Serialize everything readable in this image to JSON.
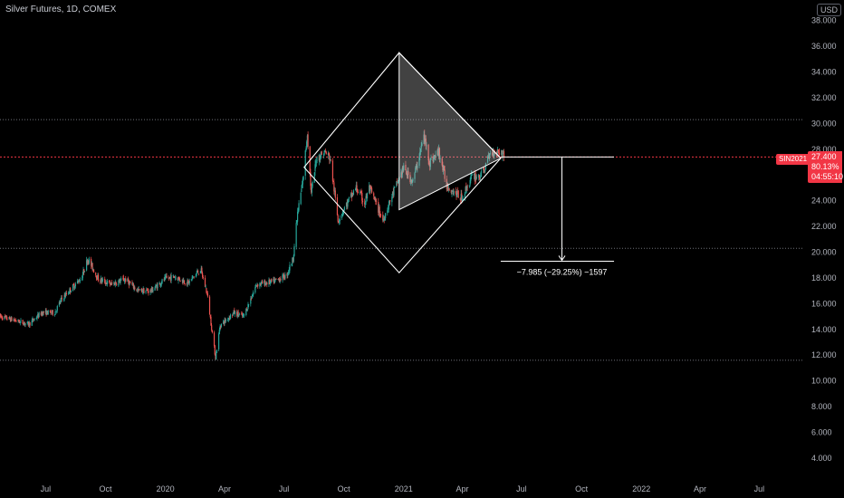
{
  "header": {
    "title": "Silver Futures, 1D, COMEX",
    "currency_badge": "USD"
  },
  "price_label": {
    "symbol": "SIN2021",
    "last_price": "27.400",
    "change_pct": "80.13%",
    "countdown": "04:55:10",
    "color": "#f23645"
  },
  "annotation": {
    "measure_text": "−7.985 (−29.25%) −1597"
  },
  "colors": {
    "up": "#26a69a",
    "down": "#ef5350",
    "background": "#000000",
    "drawing": "#ffffff",
    "price_line": "#f23645"
  },
  "chart_data": {
    "type": "candlestick",
    "y_axis": {
      "ticks": [
        "4.000",
        "6.000",
        "8.000",
        "10.000",
        "12.000",
        "14.000",
        "16.000",
        "18.000",
        "20.000",
        "22.000",
        "24.000",
        "26.000",
        "28.000",
        "30.000",
        "32.000",
        "34.000",
        "36.000",
        "38.000"
      ],
      "range": [
        2.3,
        39.6
      ],
      "side": "right"
    },
    "x_axis": {
      "ticks": [
        "Jul",
        "Oct",
        "2020",
        "Apr",
        "Jul",
        "Oct",
        "2021",
        "Apr",
        "Jul",
        "Oct",
        "2022",
        "Apr",
        "Jul"
      ],
      "range": [
        "2019-04-22",
        "2022-09-08"
      ]
    },
    "horizontal_levels": [
      30.3,
      27.4,
      20.3,
      11.6
    ],
    "price_path": [
      [
        "2019-04-22",
        15.0
      ],
      [
        "2019-05-15",
        14.7
      ],
      [
        "2019-06-05",
        14.4
      ],
      [
        "2019-06-25",
        15.3
      ],
      [
        "2019-07-15",
        15.3
      ],
      [
        "2019-07-25",
        16.3
      ],
      [
        "2019-08-10",
        17.2
      ],
      [
        "2019-08-25",
        18.0
      ],
      [
        "2019-09-04",
        19.5
      ],
      [
        "2019-09-20",
        17.9
      ],
      [
        "2019-10-10",
        17.5
      ],
      [
        "2019-10-31",
        17.9
      ],
      [
        "2019-11-20",
        17.0
      ],
      [
        "2019-12-10",
        17.0
      ],
      [
        "2019-12-31",
        17.9
      ],
      [
        "2020-01-15",
        18.1
      ],
      [
        "2020-02-05",
        17.6
      ],
      [
        "2020-02-24",
        18.7
      ],
      [
        "2020-03-05",
        16.8
      ],
      [
        "2020-03-18",
        11.8
      ],
      [
        "2020-03-25",
        14.3
      ],
      [
        "2020-04-15",
        15.3
      ],
      [
        "2020-04-30",
        15.0
      ],
      [
        "2020-05-20",
        17.5
      ],
      [
        "2020-06-15",
        17.7
      ],
      [
        "2020-07-05",
        18.2
      ],
      [
        "2020-07-15",
        19.5
      ],
      [
        "2020-07-22",
        23.0
      ],
      [
        "2020-07-30",
        25.5
      ],
      [
        "2020-08-06",
        29.3
      ],
      [
        "2020-08-12",
        24.5
      ],
      [
        "2020-08-20",
        27.3
      ],
      [
        "2020-09-02",
        27.8
      ],
      [
        "2020-09-10",
        27.3
      ],
      [
        "2020-09-22",
        22.5
      ],
      [
        "2020-10-05",
        23.7
      ],
      [
        "2020-10-20",
        25.0
      ],
      [
        "2020-11-02",
        23.8
      ],
      [
        "2020-11-09",
        25.0
      ],
      [
        "2020-11-30",
        22.5
      ],
      [
        "2020-12-15",
        24.5
      ],
      [
        "2020-12-31",
        26.5
      ],
      [
        "2021-01-15",
        25.5
      ],
      [
        "2021-02-01",
        29.0
      ],
      [
        "2021-02-10",
        27.0
      ],
      [
        "2021-02-24",
        27.8
      ],
      [
        "2021-03-08",
        25.2
      ],
      [
        "2021-03-31",
        24.2
      ],
      [
        "2021-04-15",
        25.8
      ],
      [
        "2021-05-01",
        26.0
      ],
      [
        "2021-05-15",
        27.8
      ],
      [
        "2021-05-25",
        27.9
      ],
      [
        "2021-06-04",
        27.6
      ]
    ],
    "drawings": {
      "diamond": [
        [
          "2020-08-01",
          26.6
        ],
        [
          "2020-12-25",
          35.5
        ],
        [
          "2021-05-30",
          27.3
        ],
        [
          "2020-12-25",
          18.4
        ]
      ],
      "shaded_triangle": [
        [
          "2020-12-25",
          35.5
        ],
        [
          "2020-12-25",
          23.3
        ],
        [
          "2021-05-30",
          27.3
        ]
      ],
      "measure": {
        "from": [
          "2021-05-30",
          27.4
        ],
        "to": [
          "2021-09-01",
          19.3
        ],
        "span_x": [
          "2021-05-30",
          "2021-11-20"
        ]
      }
    }
  }
}
